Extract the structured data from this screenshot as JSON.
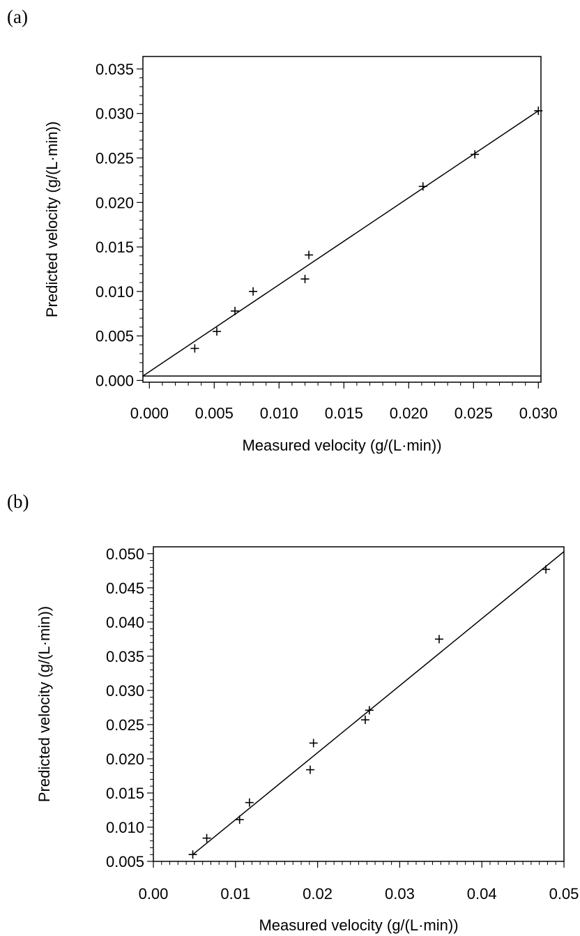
{
  "chart_data": [
    {
      "type": "scatter",
      "panel_label": "(a)",
      "xlabel": "Measured velocity (g/(L·min))",
      "ylabel": "Predicted velocity (g/(L·min))",
      "xlim": [
        -0.0005,
        0.0302
      ],
      "ylim": [
        -0.0002,
        0.0364
      ],
      "xticks": [
        "0.000",
        "0.005",
        "0.010",
        "0.015",
        "0.020",
        "0.025",
        "0.030"
      ],
      "yticks": [
        "0.000",
        "0.005",
        "0.010",
        "0.015",
        "0.020",
        "0.025",
        "0.030",
        "0.035"
      ],
      "points": [
        {
          "x": 0.0035,
          "y": 0.0036
        },
        {
          "x": 0.0052,
          "y": 0.0055
        },
        {
          "x": 0.0066,
          "y": 0.0078
        },
        {
          "x": 0.008,
          "y": 0.01
        },
        {
          "x": 0.012,
          "y": 0.0114
        },
        {
          "x": 0.0123,
          "y": 0.0141
        },
        {
          "x": 0.0211,
          "y": 0.0218
        },
        {
          "x": 0.0251,
          "y": 0.0254
        },
        {
          "x": 0.03,
          "y": 0.0303
        }
      ],
      "fit_line": {
        "x": [
          -0.0005,
          0.03
        ],
        "y": [
          0.0005,
          0.0303
        ]
      },
      "hline_y": 0.0005,
      "grid": false
    },
    {
      "type": "scatter",
      "panel_label": "(b)",
      "xlabel": "Measured velocity (g/(L·min))",
      "ylabel": "Predicted velocity (g/(L·min))",
      "xlim": [
        0.0,
        0.05
      ],
      "ylim": [
        0.005,
        0.051
      ],
      "xticks": [
        "0.00",
        "0.01",
        "0.02",
        "0.03",
        "0.04",
        "0.05"
      ],
      "yticks": [
        "0.005",
        "0.010",
        "0.015",
        "0.020",
        "0.025",
        "0.030",
        "0.035",
        "0.040",
        "0.045",
        "0.050"
      ],
      "points": [
        {
          "x": 0.0048,
          "y": 0.006
        },
        {
          "x": 0.0065,
          "y": 0.0084
        },
        {
          "x": 0.0105,
          "y": 0.0111
        },
        {
          "x": 0.0117,
          "y": 0.0136
        },
        {
          "x": 0.0191,
          "y": 0.0184
        },
        {
          "x": 0.0195,
          "y": 0.0223
        },
        {
          "x": 0.0258,
          "y": 0.0257
        },
        {
          "x": 0.0263,
          "y": 0.0271
        },
        {
          "x": 0.0348,
          "y": 0.0375
        },
        {
          "x": 0.0478,
          "y": 0.0477
        }
      ],
      "fit_line": {
        "x": [
          0.0048,
          0.05
        ],
        "y": [
          0.006,
          0.0503
        ]
      },
      "grid": false
    }
  ]
}
